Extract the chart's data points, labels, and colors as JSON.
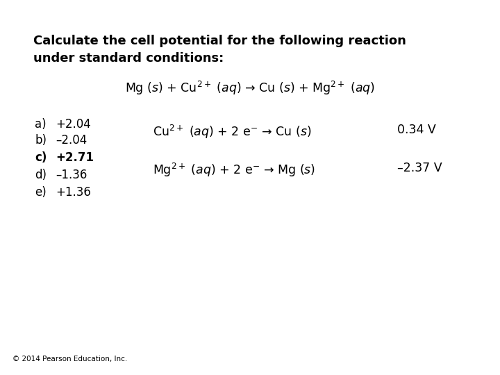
{
  "background_color": "#ffffff",
  "title_line1": "Calculate the cell potential for the following reaction",
  "title_line2": "under standard conditions:",
  "main_reaction": "Mg ($\\mathit{s}$) + Cu$^{2+}$ ($\\mathit{aq}$) → Cu ($\\mathit{s}$) + Mg$^{2+}$ ($\\mathit{aq}$)",
  "options": [
    {
      "label": "a)",
      "value": "+2.04",
      "bold": false
    },
    {
      "label": "b)",
      "value": "–2.04",
      "bold": false
    },
    {
      "label": "c)",
      "value": "+2.71",
      "bold": true
    },
    {
      "label": "d)",
      "value": "–1.36",
      "bold": false
    },
    {
      "label": "e)",
      "value": "+1.36",
      "bold": false
    }
  ],
  "half_reaction1": "Cu$^{2+}$ ($\\mathit{aq}$) + 2 e$^{-}$ → Cu ($\\mathit{s}$)",
  "half_reaction1_value": "0.34 V",
  "half_reaction2": "Mg$^{2+}$ ($\\mathit{aq}$) + 2 e$^{-}$ → Mg ($\\mathit{s}$)",
  "half_reaction2_value": "–2.37 V",
  "footer": "© 2014 Pearson Education, Inc.",
  "text_color": "#000000",
  "title_fontsize": 13.0,
  "body_fontsize": 12.0,
  "reaction_fontsize": 12.5,
  "footer_fontsize": 7.5
}
